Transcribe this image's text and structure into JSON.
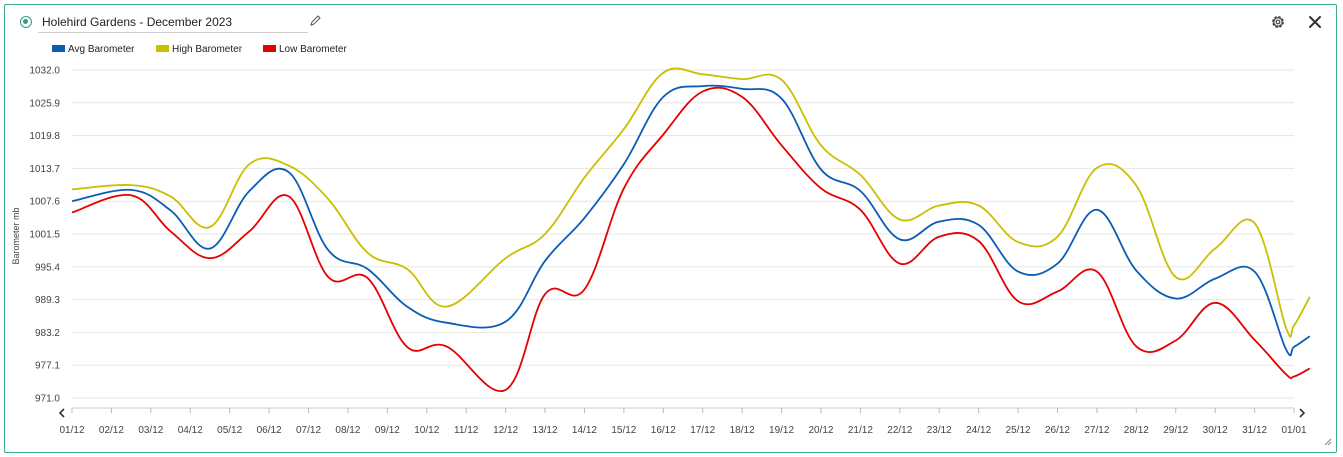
{
  "window": {
    "title": "Holehird Gardens - December 2023"
  },
  "icons": {
    "radio": "radio-selected-icon",
    "edit": "pencil-icon",
    "settings": "gear-icon",
    "close": "close-icon",
    "prev": "chevron-left-icon",
    "next": "chevron-right-icon",
    "resize": "resize-grip-icon"
  },
  "colors": {
    "frame": "#3aa88e",
    "avg": "#0b5cb5",
    "high": "#c8c000",
    "low": "#e60000",
    "grid": "#e6e6e6"
  },
  "chart_data": {
    "type": "line",
    "ylabel": "Barometer mb",
    "xlabel": "",
    "ylim": [
      971.0,
      1032.0
    ],
    "yticks": [
      "1032.0",
      "1025.9",
      "1019.8",
      "1013.7",
      "1007.6",
      "1001.5",
      "995.4",
      "989.3",
      "983.2",
      "977.1",
      "971.0"
    ],
    "x": [
      "01/12",
      "02/12",
      "03/12",
      "04/12",
      "05/12",
      "06/12",
      "07/12",
      "08/12",
      "09/12",
      "10/12",
      "11/12",
      "12/12",
      "13/12",
      "14/12",
      "15/12",
      "16/12",
      "17/12",
      "18/12",
      "19/12",
      "20/12",
      "21/12",
      "22/12",
      "23/12",
      "24/12",
      "25/12",
      "26/12",
      "27/12",
      "28/12",
      "29/12",
      "30/12",
      "31/12",
      "01/01"
    ],
    "grid": true,
    "legend_position": "top-left",
    "series": [
      {
        "name": "Avg Barometer",
        "color": "#0b5cb5",
        "points": [
          [
            0.0,
            1007.6
          ],
          [
            1.5,
            1009.7
          ],
          [
            2.5,
            1005.9
          ],
          [
            3.5,
            998.8
          ],
          [
            4.5,
            1009.5
          ],
          [
            5.5,
            1013.0
          ],
          [
            6.5,
            998.5
          ],
          [
            7.5,
            995.0
          ],
          [
            8.5,
            988.0
          ],
          [
            9.5,
            985.0
          ],
          [
            11.0,
            985.2
          ],
          [
            12.0,
            996.5
          ],
          [
            13.0,
            1004.5
          ],
          [
            14.0,
            1014.5
          ],
          [
            15.0,
            1027.0
          ],
          [
            16.0,
            1029.0
          ],
          [
            17.0,
            1028.5
          ],
          [
            18.0,
            1026.7
          ],
          [
            19.0,
            1013.5
          ],
          [
            20.0,
            1009.5
          ],
          [
            21.0,
            1000.5
          ],
          [
            22.0,
            1003.8
          ],
          [
            23.0,
            1003.2
          ],
          [
            24.0,
            994.5
          ],
          [
            25.0,
            996.0
          ],
          [
            26.0,
            1006.0
          ],
          [
            27.0,
            994.7
          ],
          [
            28.0,
            989.5
          ],
          [
            29.0,
            993.2
          ],
          [
            30.0,
            994.5
          ],
          [
            30.8,
            980.0
          ],
          [
            31.0,
            980.5
          ],
          [
            31.4,
            982.5
          ]
        ]
      },
      {
        "name": "High Barometer",
        "color": "#c8c000",
        "points": [
          [
            0.0,
            1009.8
          ],
          [
            1.5,
            1010.6
          ],
          [
            2.5,
            1008.5
          ],
          [
            3.5,
            1002.8
          ],
          [
            4.5,
            1014.5
          ],
          [
            5.5,
            1014.2
          ],
          [
            6.5,
            1008.0
          ],
          [
            7.5,
            998.0
          ],
          [
            8.5,
            995.0
          ],
          [
            9.5,
            988.0
          ],
          [
            11.0,
            997.0
          ],
          [
            12.0,
            1001.5
          ],
          [
            13.0,
            1012.0
          ],
          [
            14.0,
            1021.0
          ],
          [
            15.0,
            1031.5
          ],
          [
            16.0,
            1031.2
          ],
          [
            17.0,
            1030.3
          ],
          [
            18.0,
            1030.2
          ],
          [
            19.0,
            1018.0
          ],
          [
            20.0,
            1012.5
          ],
          [
            21.0,
            1004.2
          ],
          [
            22.0,
            1006.8
          ],
          [
            23.0,
            1006.8
          ],
          [
            24.0,
            1000.0
          ],
          [
            25.0,
            1001.0
          ],
          [
            26.0,
            1013.8
          ],
          [
            27.0,
            1010.5
          ],
          [
            28.0,
            993.5
          ],
          [
            29.0,
            998.8
          ],
          [
            30.0,
            1003.5
          ],
          [
            30.8,
            984.0
          ],
          [
            31.0,
            984.5
          ],
          [
            31.4,
            989.8
          ]
        ]
      },
      {
        "name": "Low Barometer",
        "color": "#e60000",
        "points": [
          [
            0.0,
            1005.5
          ],
          [
            1.5,
            1008.7
          ],
          [
            2.5,
            1002.0
          ],
          [
            3.5,
            997.0
          ],
          [
            4.5,
            1002.0
          ],
          [
            5.5,
            1008.5
          ],
          [
            6.5,
            993.5
          ],
          [
            7.5,
            993.3
          ],
          [
            8.5,
            980.5
          ],
          [
            9.5,
            980.6
          ],
          [
            11.0,
            972.5
          ],
          [
            12.0,
            990.3
          ],
          [
            13.0,
            991.2
          ],
          [
            14.0,
            1010.0
          ],
          [
            15.0,
            1020.0
          ],
          [
            16.0,
            1028.0
          ],
          [
            17.0,
            1027.0
          ],
          [
            18.0,
            1018.0
          ],
          [
            19.0,
            1010.0
          ],
          [
            20.0,
            1006.0
          ],
          [
            21.0,
            996.0
          ],
          [
            22.0,
            1001.0
          ],
          [
            23.0,
            1000.2
          ],
          [
            24.0,
            989.0
          ],
          [
            25.0,
            990.8
          ],
          [
            26.0,
            994.5
          ],
          [
            27.0,
            980.6
          ],
          [
            28.0,
            981.7
          ],
          [
            29.0,
            988.7
          ],
          [
            30.0,
            981.8
          ],
          [
            30.8,
            975.4
          ],
          [
            31.0,
            975.0
          ],
          [
            31.4,
            976.5
          ]
        ]
      }
    ]
  }
}
